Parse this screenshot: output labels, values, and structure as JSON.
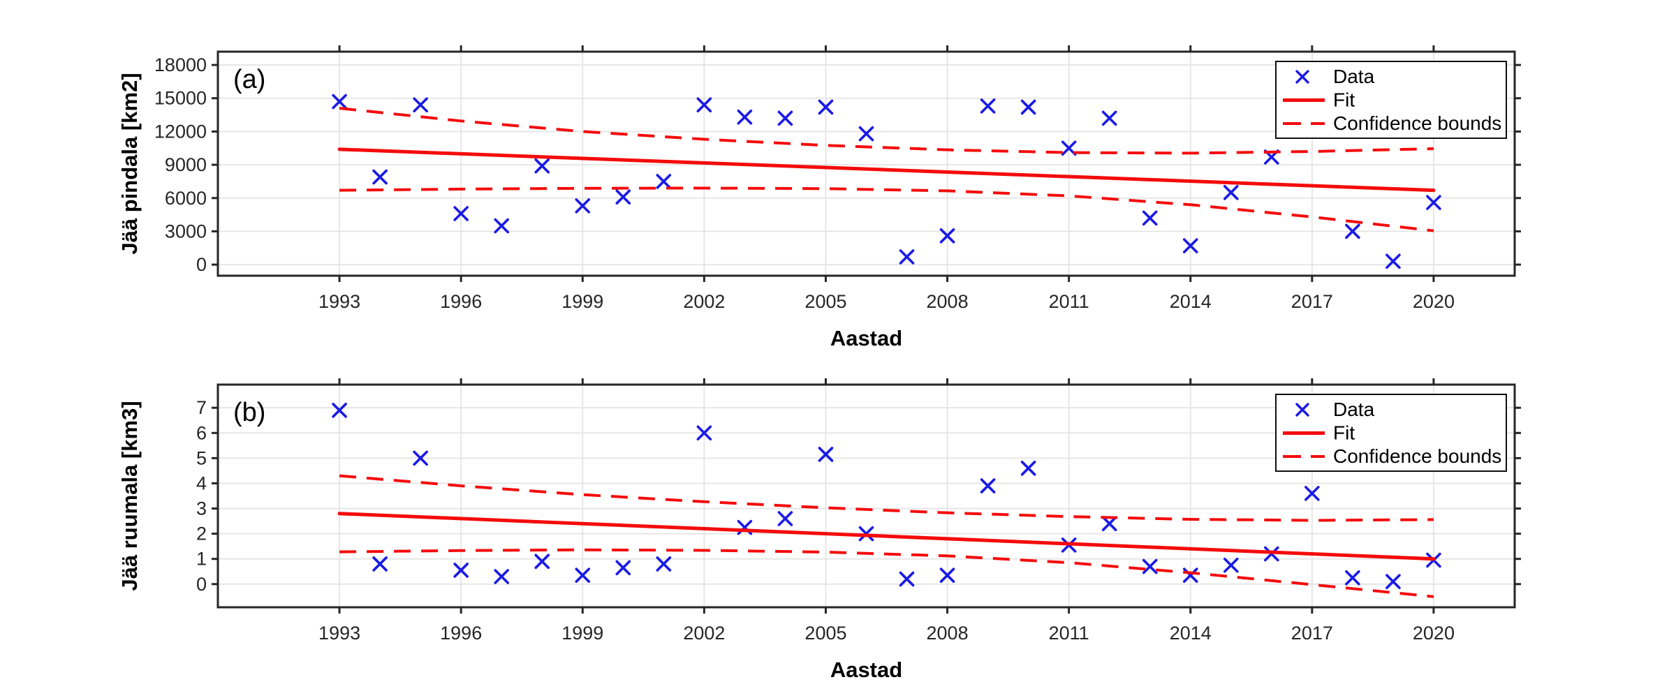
{
  "figure": {
    "background": "#ffffff",
    "xlabel": "Aastad",
    "legend": {
      "items": [
        {
          "label": "Data",
          "type": "marker"
        },
        {
          "label": "Fit",
          "type": "solid"
        },
        {
          "label": "Confidence bounds",
          "type": "dashed"
        }
      ]
    },
    "colors": {
      "marker_blue": "#1a1ae6",
      "fit_red": "#f40b0b",
      "bounds_red": "#f40b0b",
      "grid_gray": "#e4e4e4",
      "axis_dark": "#262626",
      "tick_text": "#262626",
      "label_black": "#000000",
      "legend_border": "#0f0f0f",
      "legend_bg": "#ffffff"
    }
  },
  "chart_data": [
    {
      "id": "a",
      "type": "scatter",
      "panel_label": "(a)",
      "ylabel": "Jää pindala [km2]",
      "xlabel": "Aastad",
      "xlim": [
        1990,
        2022
      ],
      "ylim": [
        -1000,
        19200
      ],
      "x_ticks": [
        1993,
        1996,
        1999,
        2002,
        2005,
        2008,
        2011,
        2014,
        2017,
        2020
      ],
      "y_ticks": [
        0,
        3000,
        6000,
        9000,
        12000,
        15000,
        18000
      ],
      "grid": true,
      "legend_position": "top-right",
      "series": [
        {
          "name": "Data",
          "type": "scatter",
          "x": [
            1993,
            1994,
            1995,
            1996,
            1997,
            1998,
            1999,
            2000,
            2001,
            2002,
            2003,
            2004,
            2005,
            2006,
            2007,
            2008,
            2009,
            2010,
            2011,
            2012,
            2013,
            2014,
            2015,
            2016,
            2018,
            2019,
            2020
          ],
          "y": [
            14700,
            7900,
            14400,
            4600,
            3500,
            8900,
            5300,
            6100,
            7500,
            14400,
            13300,
            13200,
            14200,
            11800,
            700,
            2600,
            14300,
            14200,
            10500,
            13200,
            4200,
            1700,
            6500,
            9700,
            3000,
            300,
            5600
          ]
        },
        {
          "name": "Fit",
          "type": "line",
          "x": [
            1993,
            2020
          ],
          "y": [
            10400,
            6700
          ]
        },
        {
          "name": "Confidence bounds",
          "type": "dashed-pair",
          "x": [
            1993,
            1996,
            1999,
            2002,
            2005,
            2008,
            2011,
            2014,
            2017,
            2020
          ],
          "upper": [
            14100,
            12950,
            12000,
            11300,
            10750,
            10350,
            10100,
            10050,
            10200,
            10450
          ],
          "lower": [
            6700,
            6810,
            6880,
            6900,
            6850,
            6650,
            6200,
            5400,
            4300,
            3050
          ]
        }
      ]
    },
    {
      "id": "b",
      "type": "scatter",
      "panel_label": "(b)",
      "ylabel": "Jää ruumala [km3]",
      "xlabel": "Aastad",
      "xlim": [
        1990,
        2022
      ],
      "ylim": [
        -0.92,
        7.92
      ],
      "x_ticks": [
        1993,
        1996,
        1999,
        2002,
        2005,
        2008,
        2011,
        2014,
        2017,
        2020
      ],
      "y_ticks": [
        0,
        1,
        2,
        3,
        4,
        5,
        6,
        7
      ],
      "grid": true,
      "legend_position": "top-right",
      "series": [
        {
          "name": "Data",
          "type": "scatter",
          "x": [
            1993,
            1994,
            1995,
            1996,
            1997,
            1998,
            1999,
            2000,
            2001,
            2002,
            2003,
            2004,
            2005,
            2006,
            2007,
            2008,
            2009,
            2010,
            2011,
            2012,
            2013,
            2014,
            2015,
            2016,
            2017,
            2018,
            2019,
            2020
          ],
          "y": [
            6.9,
            0.8,
            5.0,
            0.55,
            0.3,
            0.9,
            0.35,
            0.65,
            0.8,
            6.0,
            2.25,
            2.6,
            5.15,
            2.0,
            0.2,
            0.35,
            3.9,
            4.6,
            1.55,
            2.4,
            0.7,
            0.35,
            0.75,
            1.2,
            3.6,
            0.25,
            0.1,
            0.95
          ]
        },
        {
          "name": "Fit",
          "type": "line",
          "x": [
            1993,
            2020
          ],
          "y": [
            2.8,
            1.0
          ]
        },
        {
          "name": "Confidence bounds",
          "type": "dashed-pair",
          "x": [
            1993,
            1996,
            1999,
            2002,
            2005,
            2008,
            2011,
            2014,
            2017,
            2020
          ],
          "upper": [
            4.3,
            3.9,
            3.55,
            3.27,
            3.03,
            2.83,
            2.68,
            2.57,
            2.53,
            2.56
          ],
          "lower": [
            1.28,
            1.33,
            1.36,
            1.34,
            1.27,
            1.12,
            0.85,
            0.45,
            -0.02,
            -0.5
          ]
        }
      ]
    }
  ]
}
